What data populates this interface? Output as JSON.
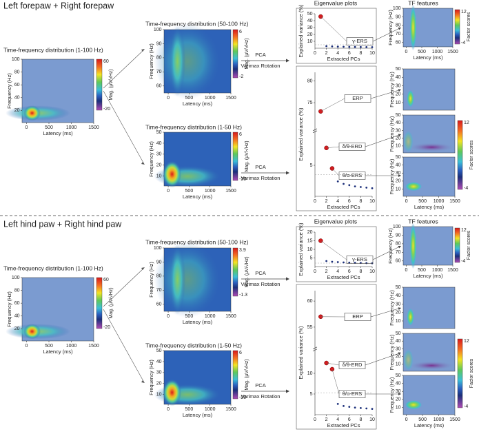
{
  "sections": [
    {
      "title": "Left forepaw + Right forepaw",
      "full": {
        "title": "Time-frequency distribution (1-100 Hz)",
        "ylabel": "Frequency (Hz)",
        "xlabel": "Latency (ms)",
        "xlim": [
          -100,
          1500
        ],
        "ylim": [
          1,
          100
        ],
        "xticks": [
          0,
          500,
          1000,
          1500
        ],
        "yticks": [
          20,
          40,
          60,
          80,
          100
        ],
        "cbar_label": "Mag. (µV/√Hz)",
        "cbar_ticks": [
          60,
          -20
        ]
      },
      "high": {
        "title": "Time-frequency distribution (50-100 Hz)",
        "ylabel": "Frequency (Hz)",
        "xlabel": "Latency (ms)",
        "xlim": [
          -100,
          1500
        ],
        "ylim": [
          55,
          100
        ],
        "xticks": [
          0,
          500,
          1000,
          1500
        ],
        "yticks": [
          60,
          70,
          80,
          90,
          100
        ],
        "cbar_label": "Mag. (µV/√Hz)",
        "cbar_ticks": [
          6,
          -2
        ]
      },
      "low": {
        "title": "Time-frequency distribution (1-50 Hz)",
        "ylabel": "Frequency (Hz)",
        "xlabel": "Latency (ms)",
        "xlim": [
          -100,
          1500
        ],
        "ylim": [
          1,
          50
        ],
        "xticks": [
          0,
          500,
          1000,
          1500
        ],
        "yticks": [
          10,
          20,
          30,
          40,
          50
        ],
        "cbar_label": "Mag. (µV/√Hz)",
        "cbar_ticks": [
          6,
          -20
        ]
      },
      "methods": [
        {
          "line1": "PCA",
          "line2": "Varimax Rotation"
        },
        {
          "line1": "PCA",
          "line2": "Varimax Rotation"
        }
      ],
      "eigen_title": "Eigenvalue plots",
      "eigen_high": {
        "ylabel": "Explained variance (%)",
        "xlabel": "Extracted PCs",
        "xlim": [
          0,
          10
        ],
        "ylim": [
          0,
          50
        ],
        "xticks": [
          0,
          2,
          4,
          6,
          8,
          10
        ],
        "yticks": [
          10,
          20,
          30,
          40,
          50
        ],
        "x": [
          1,
          2,
          3,
          4,
          5,
          6,
          7,
          8,
          9,
          10
        ],
        "values": [
          46,
          3,
          2.6,
          2.3,
          2.1,
          1.9,
          1.8,
          1.7,
          1.6,
          1.5
        ],
        "labels": [
          "γ-ERS"
        ]
      },
      "eigen_low": {
        "ylabel": "Explained variance (%)",
        "xlabel": "Extracted PCs",
        "xlim": [
          0,
          10
        ],
        "ylim": [
          0,
          82
        ],
        "ybreak": [
          10,
          70
        ],
        "xticks": [
          0,
          2,
          4,
          6,
          8,
          10
        ],
        "yticks": [
          5,
          75,
          80
        ],
        "x": [
          1,
          2,
          3,
          4,
          5,
          6,
          7,
          8,
          9,
          10
        ],
        "values": [
          73,
          7.8,
          4.5,
          2.4,
          2,
          1.8,
          1.6,
          1.5,
          1.4,
          1.3
        ],
        "labels": [
          "ERP",
          "δ/θ-ERD",
          "θ/α-ERS"
        ]
      },
      "features_title": "TF features",
      "features_high": {
        "ylabel": "Frequency (Hz)",
        "xlabel": "Latency (ms)",
        "xlim": [
          -100,
          1500
        ],
        "ylim": [
          55,
          100
        ],
        "xticks": [
          0,
          500,
          1000,
          1500
        ],
        "yticks": [
          60,
          70,
          80,
          90,
          100
        ],
        "cbar_label": "Factor scores",
        "cbar_ticks": [
          12,
          -4
        ]
      },
      "features_low": {
        "ylabel": "Frequency (Hz)",
        "xlabel": "Latency (ms)",
        "xlim": [
          -100,
          1500
        ],
        "ylim": [
          1,
          50
        ],
        "xticks": [
          0,
          500,
          1000,
          1500
        ],
        "yticks": [
          10,
          20,
          30,
          40,
          50
        ],
        "cbar_label": "Factor scores",
        "cbar_ticks": [
          12,
          -4
        ]
      }
    },
    {
      "title": "Left hind paw + Right hind paw",
      "full": {
        "title": "Time-frequency distribution (1-100 Hz)",
        "ylabel": "Frequency (Hz)",
        "xlabel": "Latency (ms)",
        "xlim": [
          -100,
          1500
        ],
        "ylim": [
          1,
          100
        ],
        "xticks": [
          0,
          500,
          1000,
          1500
        ],
        "yticks": [
          20,
          40,
          60,
          80,
          100
        ],
        "cbar_label": "Mag. (µV/√Hz)",
        "cbar_ticks": [
          60,
          -20
        ]
      },
      "high": {
        "title": "Time-frequency distribution (50-100 Hz)",
        "ylabel": "Frequency (Hz)",
        "xlabel": "Latency (ms)",
        "xlim": [
          -100,
          1500
        ],
        "ylim": [
          55,
          100
        ],
        "xticks": [
          0,
          500,
          1000,
          1500
        ],
        "yticks": [
          60,
          70,
          80,
          90,
          100
        ],
        "cbar_label": "Mag. (µV/√Hz)",
        "cbar_ticks": [
          3.9,
          -1.3
        ]
      },
      "low": {
        "title": "Time-frequency distribution (1-50 Hz)",
        "ylabel": "Frequency (Hz)",
        "xlabel": "Latency (ms)",
        "xlim": [
          -100,
          1500
        ],
        "ylim": [
          1,
          50
        ],
        "xticks": [
          0,
          500,
          1000,
          1500
        ],
        "yticks": [
          10,
          20,
          30,
          40,
          50
        ],
        "cbar_label": "Mag. (µV/√Hz)",
        "cbar_ticks": [
          6,
          -20
        ]
      },
      "methods": [
        {
          "line1": "PCA",
          "line2": "Varimax Rotation"
        },
        {
          "line1": "PCA",
          "line2": "Varimax Rotation"
        }
      ],
      "eigen_title": "Eigenvalue plots",
      "eigen_high": {
        "ylabel": "Explained variance (%)",
        "xlabel": "Extracted PCs",
        "xlim": [
          0,
          10
        ],
        "ylim": [
          0,
          20
        ],
        "xticks": [
          0,
          2,
          4,
          6,
          8,
          10
        ],
        "yticks": [
          5,
          10,
          15,
          20
        ],
        "x": [
          1,
          2,
          3,
          4,
          5,
          6,
          7,
          8,
          9,
          10
        ],
        "values": [
          15,
          3.2,
          2.8,
          2.6,
          2.4,
          2.3,
          2.2,
          2.1,
          2,
          1.9
        ],
        "labels": [
          "γ-ERS"
        ]
      },
      "eigen_low": {
        "ylabel": "Explained variance (%)",
        "xlabel": "Extracted PCs",
        "xlim": [
          0,
          10
        ],
        "ylim": [
          0,
          62
        ],
        "ybreak": [
          15,
          52
        ],
        "xticks": [
          0,
          2,
          4,
          6,
          8,
          10
        ],
        "yticks": [
          5,
          10,
          55,
          60
        ],
        "x": [
          1,
          2,
          3,
          4,
          5,
          6,
          7,
          8,
          9,
          10
        ],
        "values": [
          57,
          12.5,
          11,
          2.6,
          2.1,
          1.9,
          1.7,
          1.6,
          1.5,
          1.4
        ],
        "labels": [
          "ERP",
          "δ/θ-ERD",
          "θ/α-ERS"
        ]
      },
      "features_title": "TF features",
      "features_high": {
        "ylabel": "Frequency (Hz)",
        "xlabel": "Latency (ms)",
        "xlim": [
          -100,
          1500
        ],
        "ylim": [
          55,
          100
        ],
        "xticks": [
          0,
          500,
          1000,
          1500
        ],
        "yticks": [
          60,
          70,
          80,
          90,
          100
        ],
        "cbar_label": "Factor scores",
        "cbar_ticks": [
          12,
          -4
        ]
      },
      "features_low": {
        "ylabel": "Frequency (Hz)",
        "xlabel": "Latency (ms)",
        "xlim": [
          -100,
          1500
        ],
        "ylim": [
          1,
          50
        ],
        "xticks": [
          0,
          500,
          1000,
          1500
        ],
        "yticks": [
          10,
          20,
          30,
          40,
          50
        ],
        "cbar_label": "Factor scores",
        "cbar_ticks": [
          12,
          -4
        ]
      }
    }
  ]
}
